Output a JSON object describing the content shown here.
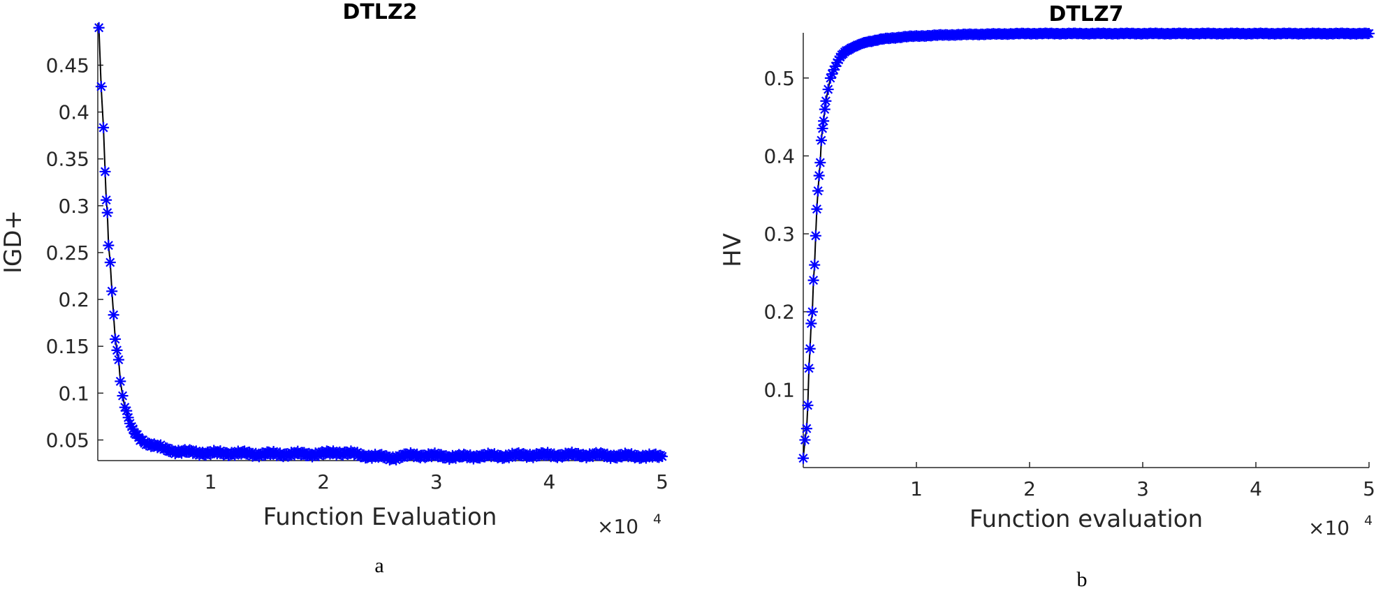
{
  "chart_data": [
    {
      "type": "line",
      "title": "DTLZ2",
      "xlabel": "Function Evaluation",
      "ylabel": "IGD+",
      "x_exponent": {
        "base": "×10",
        "power": "4"
      },
      "caption": "a",
      "xlim": [
        0,
        50000
      ],
      "ylim": [
        0.028,
        0.495
      ],
      "xticks": [
        10000,
        20000,
        30000,
        40000,
        50000
      ],
      "xtick_labels": [
        "1",
        "2",
        "3",
        "4",
        "5"
      ],
      "yticks": [
        0.05,
        0.1,
        0.15,
        0.2,
        0.25,
        0.3,
        0.35,
        0.4,
        0.45
      ],
      "ytick_labels": [
        "0.05",
        "0.1",
        "0.15",
        "0.2",
        "0.25",
        "0.3",
        "0.35",
        "0.4",
        "0.45"
      ],
      "grid": false,
      "line_color": "#000000",
      "marker": "asterisk",
      "marker_color": "#0000ff",
      "series": [
        {
          "x": [
            100,
            300,
            500,
            650,
            750,
            850,
            950,
            1100,
            1250,
            1400,
            1550,
            1700,
            1850,
            2000,
            2200,
            2400,
            2700,
            3000,
            3500,
            4000,
            5000,
            6000,
            7000,
            8000,
            10000,
            12000,
            14000,
            16000,
            18000,
            20000,
            21000,
            22000,
            24000,
            26000,
            28000,
            30000,
            32000,
            34000,
            36000,
            38000,
            40000,
            42000,
            44000,
            46000,
            48000,
            50000
          ],
          "y": [
            0.49,
            0.425,
            0.383,
            0.337,
            0.304,
            0.29,
            0.258,
            0.24,
            0.207,
            0.183,
            0.16,
            0.147,
            0.135,
            0.114,
            0.1,
            0.085,
            0.075,
            0.062,
            0.053,
            0.049,
            0.044,
            0.04,
            0.038,
            0.037,
            0.036,
            0.036,
            0.035,
            0.035,
            0.035,
            0.035,
            0.037,
            0.036,
            0.033,
            0.031,
            0.034,
            0.033,
            0.032,
            0.033,
            0.033,
            0.034,
            0.034,
            0.034,
            0.034,
            0.033,
            0.033,
            0.032
          ]
        }
      ]
    },
    {
      "type": "line",
      "title": "DTLZ7",
      "xlabel": "Function evaluation",
      "ylabel": "HV",
      "x_exponent": {
        "base": "×10",
        "power": "4"
      },
      "caption": "b",
      "xlim": [
        0,
        50000
      ],
      "ylim": [
        0.0,
        0.558
      ],
      "xticks": [
        10000,
        20000,
        30000,
        40000,
        50000
      ],
      "xtick_labels": [
        "1",
        "2",
        "3",
        "4",
        "5"
      ],
      "yticks": [
        0.1,
        0.2,
        0.3,
        0.4,
        0.5
      ],
      "ytick_labels": [
        "0.1",
        "0.2",
        "0.3",
        "0.4",
        "0.5"
      ],
      "grid": false,
      "line_color": "#000000",
      "marker": "asterisk",
      "marker_color": "#0000ff",
      "series": [
        {
          "x": [
            0,
            150,
            300,
            400,
            500,
            600,
            700,
            800,
            900,
            1000,
            1100,
            1200,
            1300,
            1400,
            1500,
            1600,
            1700,
            1800,
            1900,
            2000,
            2200,
            2400,
            2700,
            3000,
            3400,
            3800,
            4500,
            5500,
            7000,
            9000,
            12000,
            15000,
            20000,
            25000,
            30000,
            35000,
            40000,
            45000,
            50000
          ],
          "y": [
            0.012,
            0.035,
            0.05,
            0.08,
            0.127,
            0.152,
            0.185,
            0.2,
            0.24,
            0.26,
            0.298,
            0.332,
            0.355,
            0.375,
            0.392,
            0.42,
            0.435,
            0.445,
            0.46,
            0.47,
            0.485,
            0.5,
            0.51,
            0.52,
            0.53,
            0.535,
            0.54,
            0.546,
            0.55,
            0.553,
            0.555,
            0.556,
            0.557,
            0.557,
            0.557,
            0.557,
            0.557,
            0.557,
            0.557
          ]
        }
      ]
    }
  ]
}
